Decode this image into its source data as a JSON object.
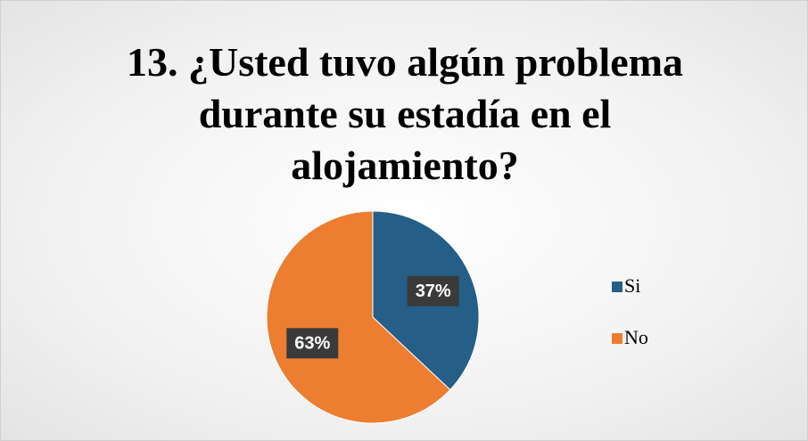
{
  "chart_data": {
    "type": "pie",
    "title": "13. ¿Usted tuvo algún problema durante su estadía en el alojamiento?",
    "categories": [
      "Si",
      "No"
    ],
    "values": [
      37,
      63
    ],
    "value_labels": [
      "37%",
      "63%"
    ],
    "colors": [
      "#255e87",
      "#ed7d31"
    ],
    "legend": "right"
  }
}
